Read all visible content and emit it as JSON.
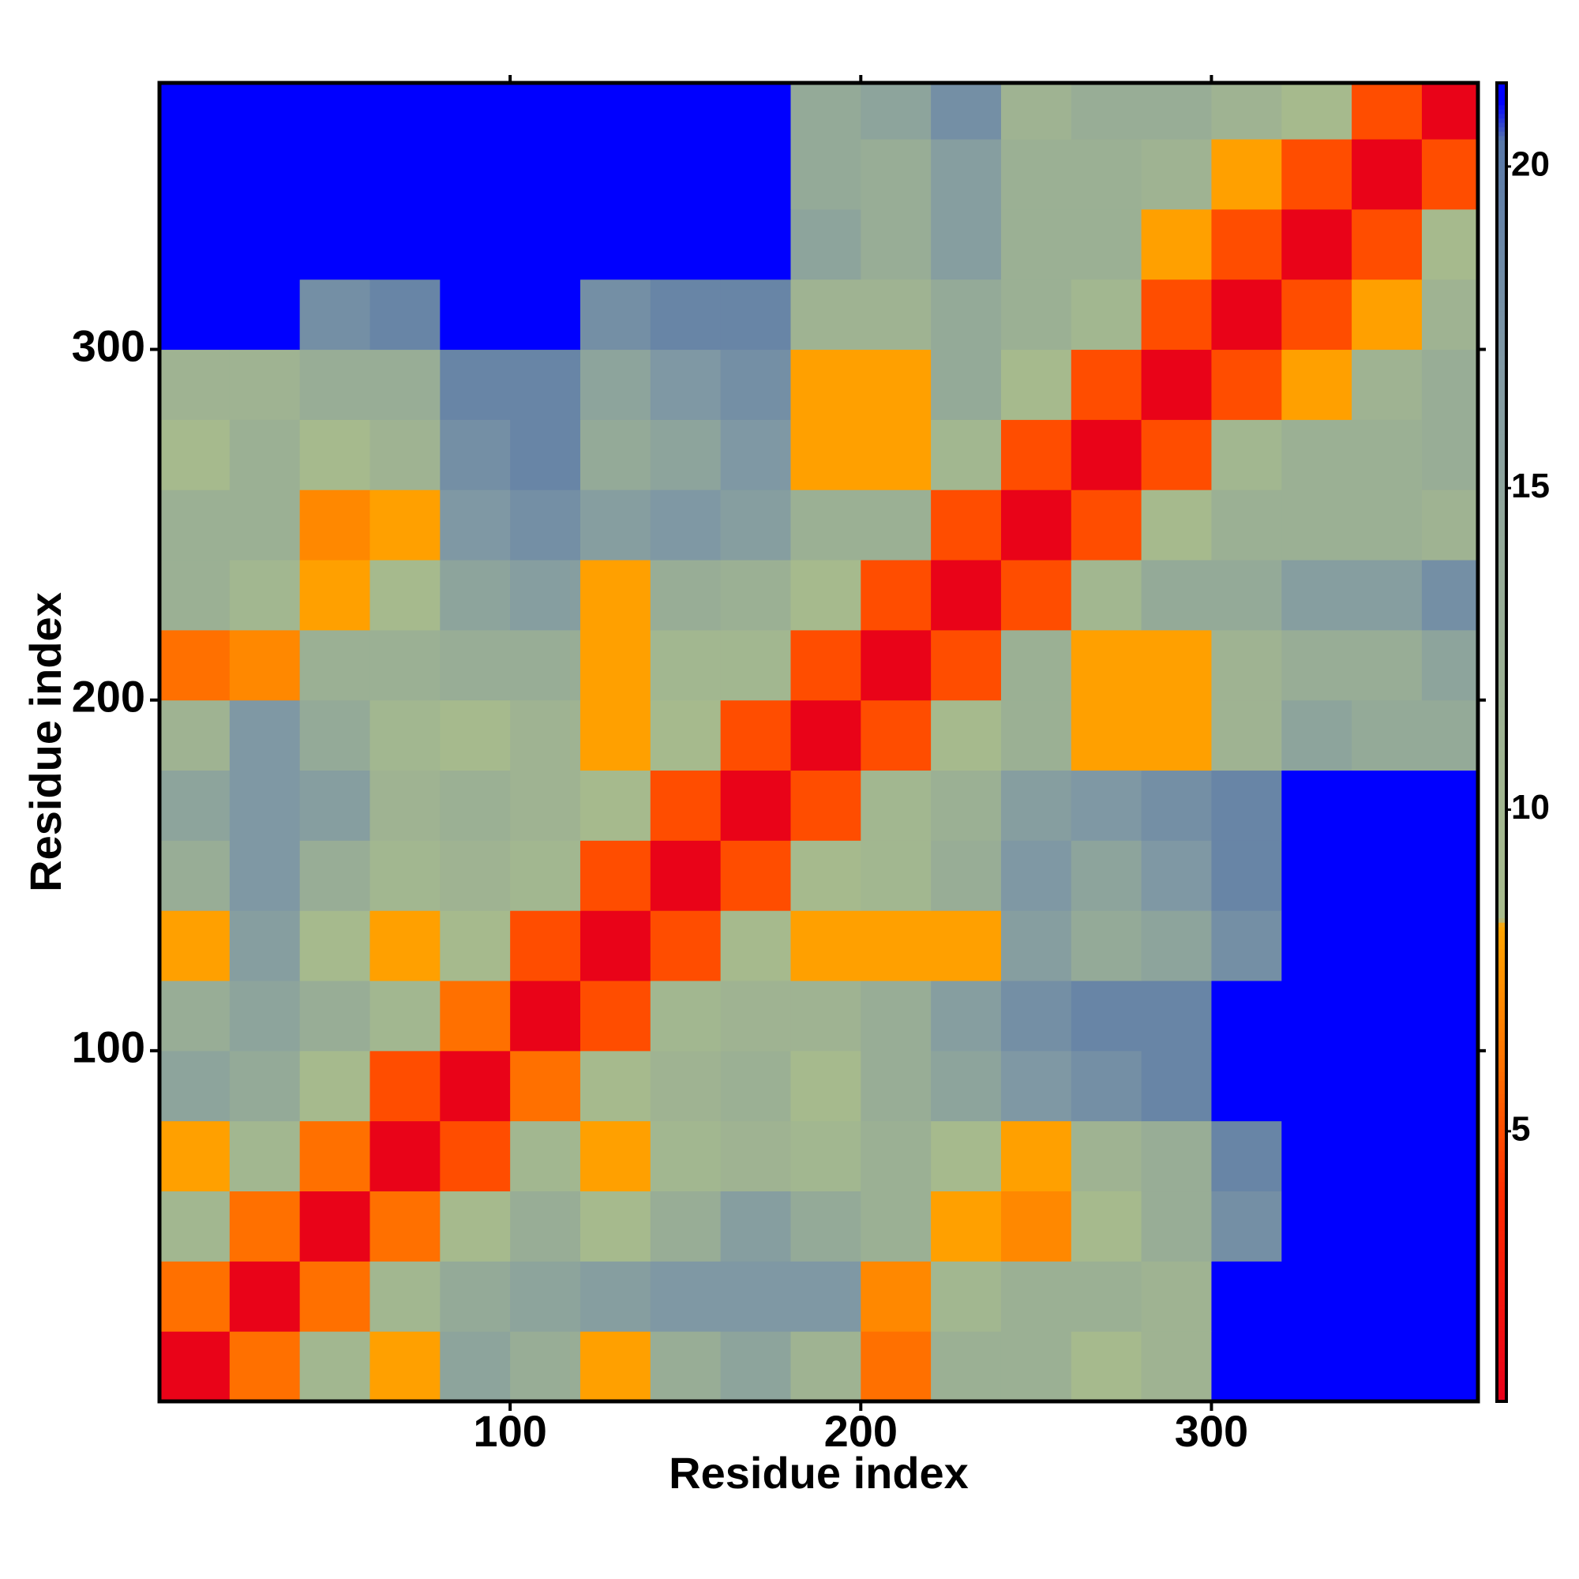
{
  "chart_data": {
    "type": "heatmap",
    "xlabel": "Residue index",
    "ylabel": "Residue index",
    "xlim": [
      0,
      376
    ],
    "ylim": [
      0,
      376
    ],
    "xticks": [
      100,
      200,
      300
    ],
    "yticks": [
      100,
      200,
      300
    ],
    "xbins": [
      0,
      20,
      40,
      60,
      80,
      100,
      120,
      140,
      160,
      180,
      200,
      220,
      240,
      260,
      280,
      300,
      320,
      340,
      360,
      376
    ],
    "ybins": [
      0,
      20,
      40,
      60,
      80,
      100,
      120,
      140,
      160,
      180,
      200,
      220,
      240,
      260,
      280,
      300,
      320,
      340,
      360,
      376
    ],
    "values": [
      [
        1,
        6,
        10,
        8,
        15,
        13,
        8,
        13,
        15,
        11,
        6,
        12,
        12,
        9,
        11,
        21,
        21,
        21,
        21
      ],
      [
        6,
        1,
        6,
        10,
        14,
        15,
        16,
        17,
        17,
        17,
        7,
        10,
        12,
        12,
        11,
        21,
        21,
        21,
        21
      ],
      [
        10,
        6,
        1,
        6,
        9,
        13,
        9,
        13,
        16,
        14,
        12,
        8,
        7,
        9,
        13,
        18,
        21,
        21,
        21
      ],
      [
        8,
        10,
        6,
        1,
        5,
        10,
        8,
        10,
        11,
        10,
        12,
        9,
        8,
        11,
        13,
        19,
        21,
        21,
        21
      ],
      [
        15,
        14,
        9,
        5,
        1,
        6,
        9,
        11,
        12,
        9,
        13,
        15,
        17,
        18,
        19,
        21,
        21,
        21,
        21
      ],
      [
        13,
        15,
        13,
        10,
        6,
        1,
        5,
        10,
        11,
        11,
        13,
        16,
        18,
        19,
        19,
        21,
        21,
        21,
        21
      ],
      [
        8,
        16,
        9,
        8,
        9,
        5,
        1,
        5,
        9,
        8,
        8,
        8,
        16,
        14,
        15,
        18,
        21,
        21,
        21
      ],
      [
        13,
        17,
        13,
        10,
        11,
        10,
        5,
        1,
        5,
        9,
        10,
        13,
        17,
        15,
        17,
        19,
        21,
        21,
        21
      ],
      [
        15,
        17,
        16,
        11,
        12,
        11,
        9,
        5,
        1,
        5,
        10,
        12,
        16,
        17,
        18,
        19,
        21,
        21,
        21
      ],
      [
        11,
        17,
        14,
        10,
        9,
        11,
        8,
        9,
        5,
        1,
        5,
        9,
        12,
        8,
        8,
        11,
        15,
        14,
        14
      ],
      [
        6,
        7,
        12,
        12,
        13,
        13,
        8,
        10,
        10,
        5,
        1,
        5,
        12,
        8,
        8,
        11,
        13,
        13,
        15
      ],
      [
        12,
        10,
        8,
        9,
        15,
        16,
        8,
        13,
        12,
        9,
        5,
        1,
        5,
        10,
        14,
        14,
        16,
        16,
        18
      ],
      [
        12,
        12,
        7,
        8,
        17,
        18,
        16,
        17,
        16,
        12,
        12,
        5,
        1,
        5,
        9,
        12,
        12,
        12,
        11
      ],
      [
        9,
        12,
        9,
        11,
        18,
        19,
        14,
        15,
        17,
        8,
        8,
        10,
        5,
        1,
        5,
        10,
        12,
        12,
        13
      ],
      [
        11,
        11,
        13,
        13,
        19,
        19,
        15,
        17,
        18,
        8,
        8,
        14,
        9,
        5,
        1,
        5,
        8,
        11,
        13
      ],
      [
        21,
        21,
        18,
        19,
        21,
        21,
        18,
        19,
        19,
        11,
        11,
        14,
        12,
        10,
        5,
        1,
        5,
        8,
        11
      ],
      [
        21,
        21,
        21,
        21,
        21,
        21,
        21,
        21,
        21,
        15,
        13,
        16,
        12,
        12,
        8,
        5,
        1,
        5,
        9
      ],
      [
        21,
        21,
        21,
        21,
        21,
        21,
        21,
        21,
        21,
        14,
        13,
        16,
        12,
        12,
        11,
        8,
        5,
        1,
        5
      ],
      [
        21,
        21,
        21,
        21,
        21,
        21,
        21,
        21,
        21,
        14,
        15,
        18,
        11,
        13,
        13,
        11,
        9,
        5,
        1
      ]
    ],
    "colorbar": {
      "lim": [
        0.8,
        21.3
      ],
      "ticks": [
        5,
        10,
        15,
        20
      ],
      "stops": [
        [
          0.8,
          "#e8001a"
        ],
        [
          4,
          "#ff2a00"
        ],
        [
          6,
          "#ff7000"
        ],
        [
          8.2,
          "#ffa500"
        ],
        [
          8.3,
          "#a8bc8c"
        ],
        [
          14,
          "#94aa98"
        ],
        [
          17,
          "#7f98a4"
        ],
        [
          20.4,
          "#5878a8"
        ],
        [
          21,
          "#0000ff"
        ],
        [
          21.3,
          "#0000ff"
        ]
      ]
    }
  }
}
